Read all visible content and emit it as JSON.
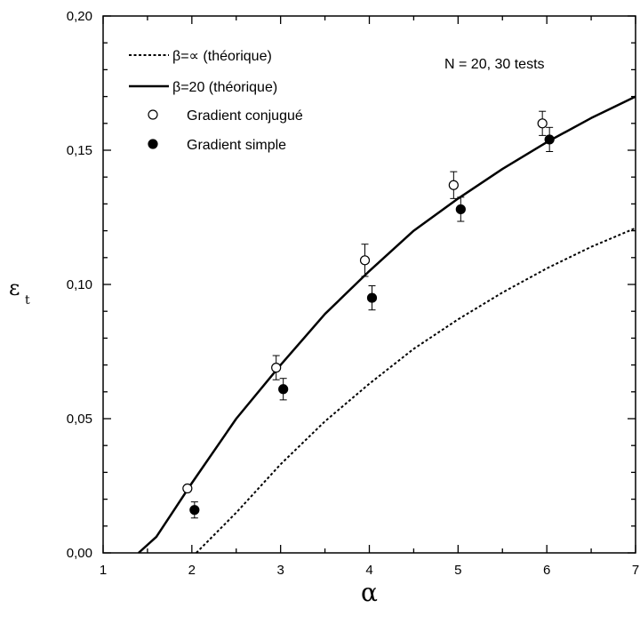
{
  "chart_data": {
    "type": "line",
    "title": "",
    "annotation": "N = 20,  30  tests",
    "xlabel": "α",
    "ylabel_main": "ε",
    "ylabel_sub": "t",
    "xlim": [
      1,
      7
    ],
    "ylim": [
      0,
      0.2
    ],
    "xticks": [
      1,
      2,
      3,
      4,
      5,
      6,
      7
    ],
    "xtick_labels": [
      "1",
      "2",
      "3",
      "4",
      "5",
      "6",
      "7"
    ],
    "yticks": [
      0,
      0.05,
      0.1,
      0.15,
      0.2
    ],
    "ytick_labels": [
      "0,00",
      "0,05",
      "0,10",
      "0,15",
      "0,20"
    ],
    "grid": false,
    "legend_position": "top-left",
    "series": [
      {
        "name": "β=∝ (théorique)",
        "style": "dotted-line",
        "x": [
          2.05,
          2.5,
          3.0,
          3.5,
          4.0,
          4.5,
          5.0,
          5.5,
          6.0,
          6.5,
          7.0
        ],
        "y": [
          0.0,
          0.015,
          0.033,
          0.049,
          0.063,
          0.076,
          0.087,
          0.097,
          0.106,
          0.114,
          0.121
        ]
      },
      {
        "name": "β=20 (théorique)",
        "style": "solid-line",
        "x": [
          1.4,
          1.6,
          1.8,
          2.0,
          2.5,
          3.0,
          3.5,
          4.0,
          4.5,
          5.0,
          5.5,
          6.0,
          6.5,
          7.0
        ],
        "y": [
          0.0,
          0.006,
          0.016,
          0.026,
          0.05,
          0.07,
          0.089,
          0.105,
          0.12,
          0.132,
          0.143,
          0.153,
          0.162,
          0.17
        ]
      },
      {
        "name": "Gradient conjugué",
        "style": "open-circle",
        "x": [
          1.95,
          2.95,
          3.95,
          4.95,
          5.95
        ],
        "y": [
          0.024,
          0.069,
          0.109,
          0.137,
          0.16
        ],
        "err": [
          0.0,
          0.0045,
          0.006,
          0.005,
          0.0045
        ]
      },
      {
        "name": "Gradient simple",
        "style": "filled-circle",
        "x": [
          2.03,
          3.03,
          4.03,
          5.03,
          6.03
        ],
        "y": [
          0.016,
          0.061,
          0.095,
          0.128,
          0.154
        ],
        "err": [
          0.003,
          0.004,
          0.0045,
          0.0045,
          0.0045
        ]
      }
    ]
  }
}
